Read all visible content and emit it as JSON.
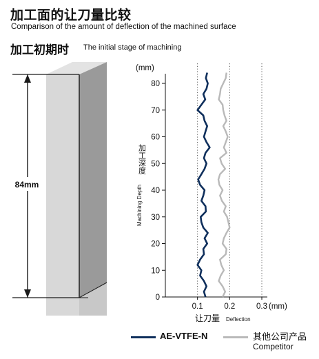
{
  "title_cn": "加工面的让刀量比较",
  "title_en": "Comparison of the amount of deflection of the machined surface",
  "stage_cn": "加工初期时",
  "stage_en": "The initial stage of machining",
  "workpiece": {
    "dimension_label": "84mm"
  },
  "chart_data": {
    "type": "line",
    "y_unit_label": "(mm)",
    "ylabel_cn": "加工深度",
    "ylabel_en": "Machining Depth",
    "xlabel_cn": "让刀量",
    "xlabel_en": "Deflection",
    "x_unit_label": "(mm)",
    "xlim": [
      0,
      0.3
    ],
    "ylim": [
      0,
      84
    ],
    "x_ticks": [
      0.1,
      0.2,
      0.3
    ],
    "x_tick_labels": [
      "0.1",
      "0.2",
      "0.3"
    ],
    "y_ticks": [
      0,
      10,
      20,
      30,
      40,
      50,
      60,
      70,
      80
    ],
    "grid": "dotted vertical lines at x ticks",
    "series": [
      {
        "name": "AE-VTFE-N",
        "color": "#0f2f5c",
        "points": [
          [
            0.125,
            0
          ],
          [
            0.12,
            2
          ],
          [
            0.128,
            4
          ],
          [
            0.12,
            6
          ],
          [
            0.108,
            8
          ],
          [
            0.112,
            10
          ],
          [
            0.1,
            12
          ],
          [
            0.108,
            14
          ],
          [
            0.12,
            16
          ],
          [
            0.118,
            18
          ],
          [
            0.13,
            20
          ],
          [
            0.122,
            22
          ],
          [
            0.132,
            24
          ],
          [
            0.118,
            26
          ],
          [
            0.112,
            28
          ],
          [
            0.11,
            30
          ],
          [
            0.126,
            32
          ],
          [
            0.125,
            34
          ],
          [
            0.112,
            36
          ],
          [
            0.118,
            38
          ],
          [
            0.122,
            40
          ],
          [
            0.108,
            42
          ],
          [
            0.102,
            44
          ],
          [
            0.112,
            46
          ],
          [
            0.122,
            48
          ],
          [
            0.128,
            50
          ],
          [
            0.12,
            52
          ],
          [
            0.125,
            54
          ],
          [
            0.138,
            56
          ],
          [
            0.128,
            58
          ],
          [
            0.12,
            60
          ],
          [
            0.125,
            62
          ],
          [
            0.13,
            64
          ],
          [
            0.122,
            66
          ],
          [
            0.118,
            68
          ],
          [
            0.1,
            70
          ],
          [
            0.112,
            72
          ],
          [
            0.124,
            74
          ],
          [
            0.118,
            76
          ],
          [
            0.128,
            78
          ],
          [
            0.132,
            80
          ],
          [
            0.126,
            82
          ],
          [
            0.13,
            84
          ]
        ]
      },
      {
        "name": "其他公司产品",
        "name_en": "Competitor",
        "color": "#b9b9b9",
        "points": [
          [
            0.178,
            0
          ],
          [
            0.186,
            2
          ],
          [
            0.178,
            4
          ],
          [
            0.166,
            6
          ],
          [
            0.172,
            8
          ],
          [
            0.182,
            10
          ],
          [
            0.174,
            12
          ],
          [
            0.17,
            14
          ],
          [
            0.188,
            16
          ],
          [
            0.19,
            18
          ],
          [
            0.178,
            20
          ],
          [
            0.182,
            22
          ],
          [
            0.19,
            24
          ],
          [
            0.2,
            26
          ],
          [
            0.196,
            28
          ],
          [
            0.192,
            30
          ],
          [
            0.182,
            32
          ],
          [
            0.188,
            34
          ],
          [
            0.176,
            36
          ],
          [
            0.17,
            38
          ],
          [
            0.178,
            40
          ],
          [
            0.168,
            42
          ],
          [
            0.165,
            44
          ],
          [
            0.17,
            46
          ],
          [
            0.186,
            48
          ],
          [
            0.175,
            50
          ],
          [
            0.17,
            52
          ],
          [
            0.19,
            54
          ],
          [
            0.182,
            56
          ],
          [
            0.188,
            58
          ],
          [
            0.194,
            60
          ],
          [
            0.188,
            62
          ],
          [
            0.18,
            64
          ],
          [
            0.19,
            66
          ],
          [
            0.184,
            68
          ],
          [
            0.18,
            70
          ],
          [
            0.178,
            72
          ],
          [
            0.166,
            74
          ],
          [
            0.17,
            76
          ],
          [
            0.172,
            78
          ],
          [
            0.18,
            80
          ],
          [
            0.188,
            82
          ],
          [
            0.19,
            84
          ]
        ]
      }
    ]
  }
}
